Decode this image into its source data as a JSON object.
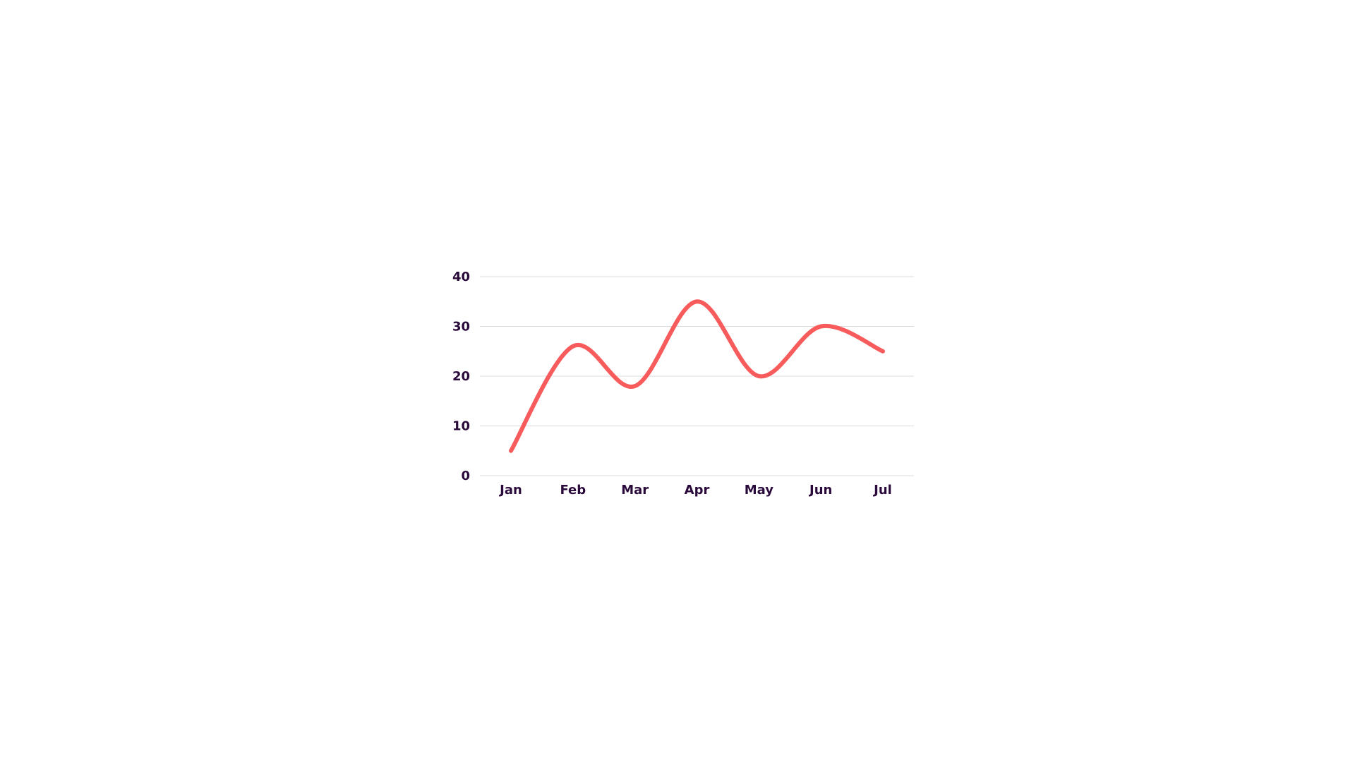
{
  "chart_data": {
    "type": "line",
    "title": "",
    "xlabel": "",
    "ylabel": "",
    "categories": [
      "Jan",
      "Feb",
      "Mar",
      "Apr",
      "May",
      "Jun",
      "Jul"
    ],
    "series": [
      {
        "values": [
          5,
          26,
          18,
          35,
          20,
          30,
          25
        ],
        "color": "#f75b5b"
      }
    ],
    "ylim": [
      0,
      40
    ],
    "y_ticks": [
      0,
      10,
      20,
      30,
      40
    ],
    "grid": true,
    "smooth": true,
    "colors": {
      "series": "#f75b5b",
      "grid": "#dcdcdc",
      "tick_text": "#2a0a3a"
    }
  }
}
